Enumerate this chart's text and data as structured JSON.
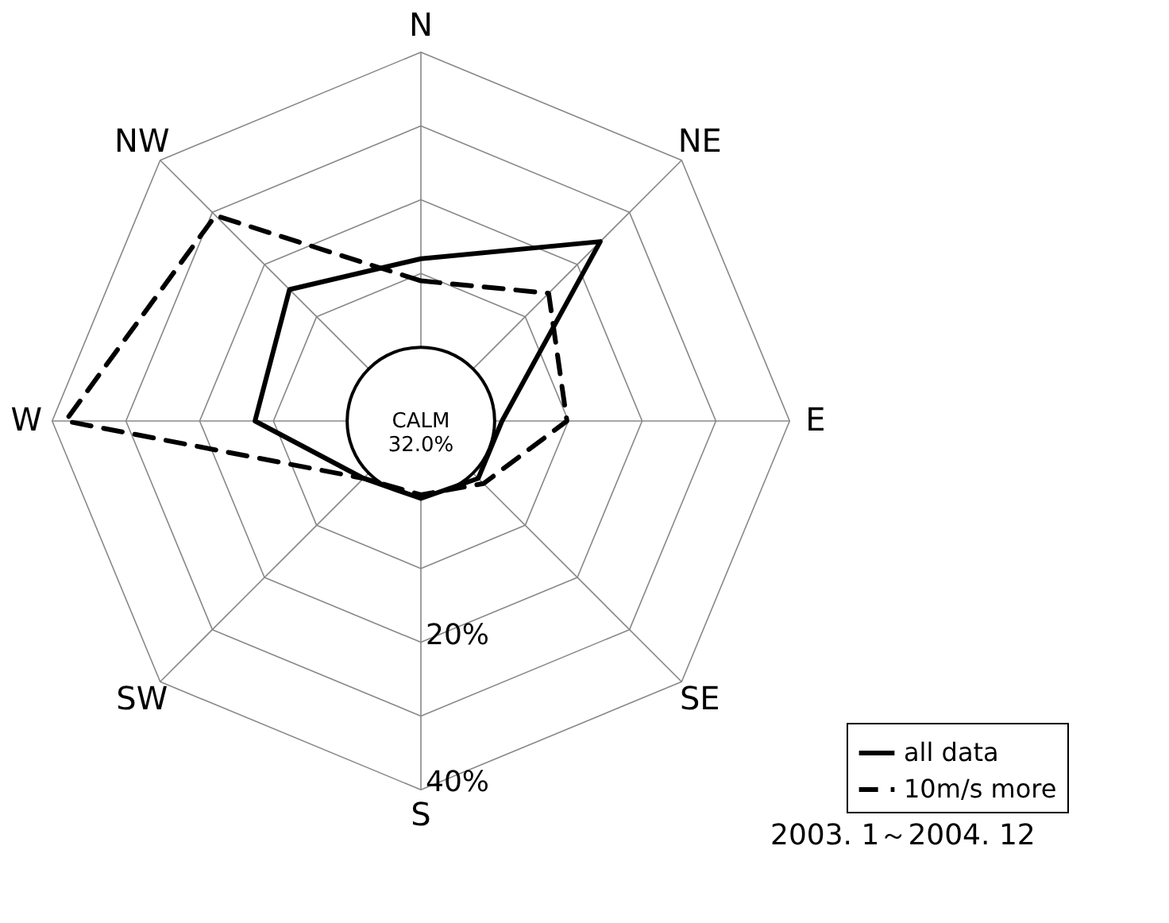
{
  "chart_data": {
    "type": "radar",
    "categories": [
      "N",
      "NE",
      "E",
      "SE",
      "S",
      "SW",
      "W",
      "NW"
    ],
    "series": [
      {
        "name": "all data",
        "color": "#000000",
        "line_style": "solid",
        "values": [
          12,
          24.4,
          1,
          1,
          0.5,
          1,
          12.5,
          15.2
        ]
      },
      {
        "name": "10m/s more",
        "color": "#000000",
        "line_style": "dashed",
        "values": [
          9,
          14.5,
          9.8,
          2,
          0,
          1,
          38.2,
          29.4
        ]
      }
    ],
    "ylim": [
      -10,
      40
    ],
    "yticks": [
      {
        "value": 20,
        "label": "20%"
      },
      {
        "value": 40,
        "label": "40%"
      }
    ],
    "grid": true,
    "legend": "bottom right",
    "annotations": [
      "CALM\n32.0%",
      "2003. 1～2004. 12"
    ]
  }
}
